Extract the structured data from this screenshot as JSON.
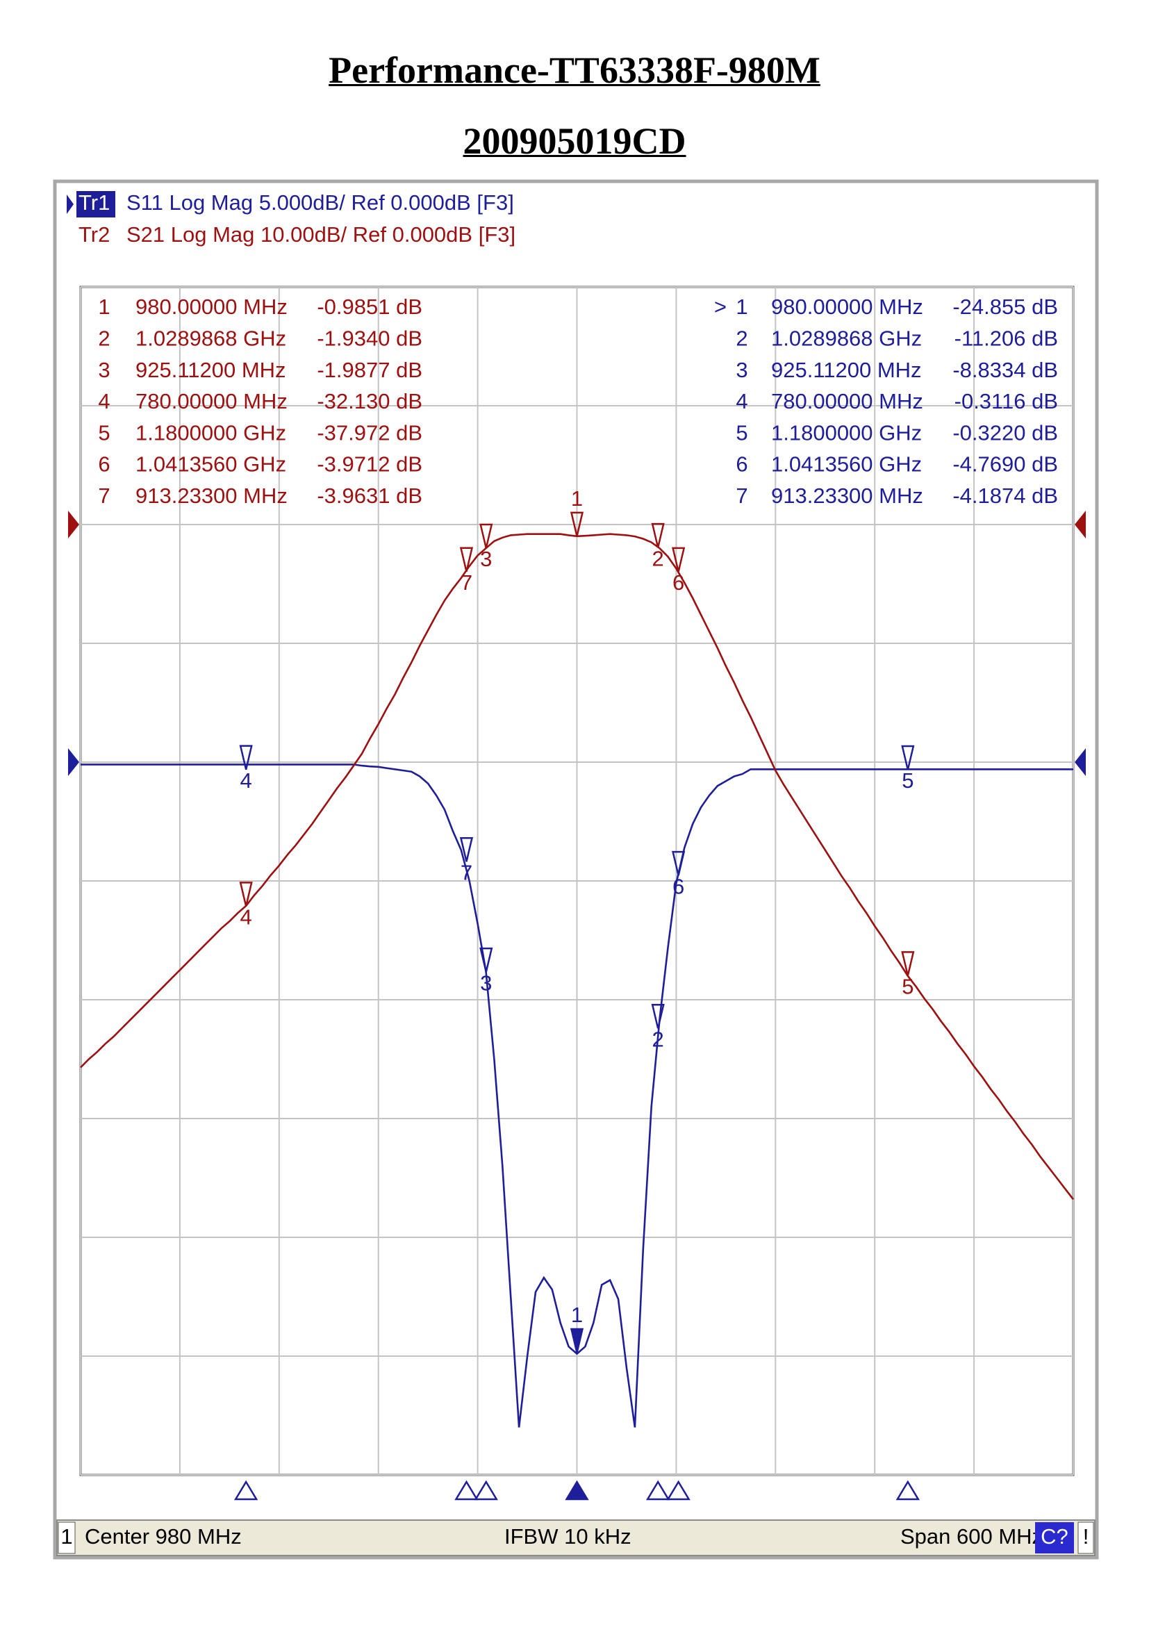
{
  "header": {
    "title": "Performance-TT63338F-980M",
    "subtitle": "200905019CD"
  },
  "status": {
    "channel": "1",
    "center": "Center 980 MHz",
    "ifbw": "IFBW 10 kHz",
    "span": "Span 600 MHz",
    "cal": "C?",
    "flag": "!"
  },
  "chart_data": {
    "type": "line",
    "grid": true,
    "xlim": [
      680,
      1280
    ],
    "xticks": [
      680,
      740,
      800,
      860,
      920,
      980,
      1040,
      1100,
      1160,
      1220,
      1280
    ],
    "ylim": [
      -80,
      20
    ],
    "yticks": [
      -80,
      -70,
      -60,
      -50,
      -40,
      -30,
      -20,
      -10,
      0,
      10,
      20
    ],
    "y2lim": [
      -30,
      20
    ],
    "y2ticks": [
      -30,
      -25,
      -20,
      -15,
      -10,
      -5,
      0,
      5,
      10,
      15,
      20
    ],
    "x": [
      680,
      685,
      690,
      695,
      700,
      705,
      710,
      715,
      720,
      725,
      730,
      735,
      740,
      745,
      750,
      755,
      760,
      765,
      770,
      775,
      780,
      785,
      790,
      795,
      800,
      805,
      810,
      815,
      820,
      825,
      830,
      835,
      840,
      845,
      850,
      855,
      860,
      865,
      870,
      875,
      880,
      885,
      890,
      895,
      900,
      905,
      910,
      915,
      920,
      925,
      930,
      935,
      940,
      945,
      950,
      955,
      960,
      965,
      970,
      975,
      980,
      985,
      990,
      995,
      1000,
      1005,
      1010,
      1015,
      1020,
      1025,
      1030,
      1035,
      1040,
      1045,
      1050,
      1055,
      1060,
      1065,
      1070,
      1075,
      1080,
      1085,
      1090,
      1095,
      1100,
      1105,
      1110,
      1115,
      1120,
      1125,
      1130,
      1135,
      1140,
      1145,
      1150,
      1155,
      1160,
      1165,
      1170,
      1175,
      1180,
      1185,
      1190,
      1195,
      1200,
      1205,
      1210,
      1215,
      1220,
      1225,
      1230,
      1235,
      1240,
      1245,
      1250,
      1255,
      1260,
      1265,
      1270,
      1275,
      1280
    ],
    "series": [
      {
        "name": "Tr1",
        "label": "S11 Log Mag 5.000dB/ Ref 0.000dB [F3]",
        "color": "#1e1e9a",
        "axis": "y2",
        "ref": 0,
        "active": true,
        "marker_table": "right",
        "values": [
          -0.1,
          -0.1,
          -0.1,
          -0.1,
          -0.1,
          -0.1,
          -0.1,
          -0.1,
          -0.1,
          -0.1,
          -0.1,
          -0.1,
          -0.1,
          -0.1,
          -0.1,
          -0.1,
          -0.1,
          -0.1,
          -0.1,
          -0.1,
          -0.1,
          -0.1,
          -0.1,
          -0.1,
          -0.1,
          -0.1,
          -0.1,
          -0.1,
          -0.1,
          -0.1,
          -0.1,
          -0.1,
          -0.1,
          -0.1,
          -0.15,
          -0.18,
          -0.2,
          -0.25,
          -0.3,
          -0.35,
          -0.4,
          -0.6,
          -0.9,
          -1.4,
          -2.0,
          -2.9,
          -3.7,
          -5.0,
          -6.8,
          -8.8,
          -12.5,
          -17.0,
          -22.5,
          -28.0,
          -25.0,
          -22.3,
          -21.7,
          -22.2,
          -23.6,
          -24.6,
          -24.9,
          -24.6,
          -23.6,
          -22.0,
          -21.8,
          -22.6,
          -25.5,
          -28.0,
          -20.5,
          -14.5,
          -10.8,
          -7.8,
          -5.1,
          -3.6,
          -2.6,
          -1.9,
          -1.4,
          -1.0,
          -0.8,
          -0.6,
          -0.5,
          -0.3,
          -0.3,
          -0.3,
          -0.3,
          -0.3,
          -0.3,
          -0.3,
          -0.3,
          -0.3,
          -0.3,
          -0.3,
          -0.3,
          -0.3,
          -0.3,
          -0.3,
          -0.3,
          -0.3,
          -0.3,
          -0.3,
          -0.3,
          -0.3,
          -0.3,
          -0.3,
          -0.3,
          -0.3,
          -0.3,
          -0.3,
          -0.3,
          -0.3,
          -0.3,
          -0.3,
          -0.3,
          -0.3,
          -0.3,
          -0.3,
          -0.3,
          -0.3,
          -0.3,
          -0.3,
          -0.3
        ],
        "markers": [
          {
            "id": "1",
            "flag": ">",
            "x": 980,
            "x_label": "980.00000 MHz",
            "y": -24.855,
            "y_label": "-24.855 dB"
          },
          {
            "id": "2",
            "x": 1028.9868,
            "x_label": "1.0289868 GHz",
            "y": -11.206,
            "y_label": "-11.206 dB"
          },
          {
            "id": "3",
            "x": 925.112,
            "x_label": "925.11200 MHz",
            "y": -8.8334,
            "y_label": "-8.8334 dB"
          },
          {
            "id": "4",
            "x": 780,
            "x_label": "780.00000 MHz",
            "y": -0.3116,
            "y_label": "-0.3116 dB"
          },
          {
            "id": "5",
            "x": 1180,
            "x_label": "1.1800000 GHz",
            "y": -0.322,
            "y_label": "-0.3220 dB"
          },
          {
            "id": "6",
            "x": 1041.356,
            "x_label": "1.0413560 GHz",
            "y": -4.769,
            "y_label": "-4.7690 dB"
          },
          {
            "id": "7",
            "x": 913.233,
            "x_label": "913.23300 MHz",
            "y": -4.1874,
            "y_label": "-4.1874 dB"
          }
        ]
      },
      {
        "name": "Tr2",
        "label": "S21 Log Mag 10.00dB/ Ref 0.000dB [F3]",
        "color": "#9e1010",
        "axis": "y",
        "ref": 0,
        "active": false,
        "marker_table": "left",
        "values": [
          -45.7,
          -45.0,
          -44.4,
          -43.7,
          -43.1,
          -42.4,
          -41.7,
          -41.0,
          -40.3,
          -39.6,
          -38.9,
          -38.2,
          -37.5,
          -36.8,
          -36.1,
          -35.4,
          -34.7,
          -34.0,
          -33.4,
          -32.7,
          -32.1,
          -31.2,
          -30.4,
          -29.5,
          -28.7,
          -27.8,
          -27.0,
          -26.1,
          -25.2,
          -24.2,
          -23.2,
          -22.2,
          -21.3,
          -20.3,
          -19.3,
          -18.0,
          -16.8,
          -15.5,
          -14.3,
          -12.9,
          -11.6,
          -10.2,
          -8.9,
          -7.6,
          -6.4,
          -5.4,
          -4.5,
          -3.5,
          -2.6,
          -2.0,
          -1.4,
          -1.1,
          -0.9,
          -0.85,
          -0.8,
          -0.8,
          -0.8,
          -0.8,
          -0.8,
          -0.9,
          -0.98,
          -0.95,
          -0.9,
          -0.85,
          -0.8,
          -0.85,
          -0.9,
          -1.0,
          -1.2,
          -1.5,
          -2.0,
          -2.7,
          -3.7,
          -4.9,
          -6.2,
          -7.6,
          -9.0,
          -10.4,
          -11.9,
          -13.3,
          -14.8,
          -16.2,
          -17.7,
          -19.2,
          -20.7,
          -21.9,
          -23.0,
          -24.1,
          -25.2,
          -26.3,
          -27.4,
          -28.5,
          -29.6,
          -30.6,
          -31.7,
          -32.7,
          -33.8,
          -34.8,
          -35.9,
          -36.9,
          -38.0,
          -38.9,
          -39.9,
          -40.8,
          -41.8,
          -42.7,
          -43.7,
          -44.6,
          -45.6,
          -46.5,
          -47.5,
          -48.4,
          -49.4,
          -50.3,
          -51.3,
          -52.2,
          -53.2,
          -54.1,
          -55.0,
          -55.9,
          -56.8
        ],
        "markers": [
          {
            "id": "1",
            "x": 980,
            "x_label": "980.00000 MHz",
            "y": -0.9851,
            "y_label": "-0.9851 dB"
          },
          {
            "id": "2",
            "x": 1028.9868,
            "x_label": "1.0289868 GHz",
            "y": -1.934,
            "y_label": "-1.9340 dB"
          },
          {
            "id": "3",
            "x": 925.112,
            "x_label": "925.11200 MHz",
            "y": -1.9877,
            "y_label": "-1.9877 dB"
          },
          {
            "id": "4",
            "x": 780,
            "x_label": "780.00000 MHz",
            "y": -32.13,
            "y_label": "-32.130 dB"
          },
          {
            "id": "5",
            "x": 1180,
            "x_label": "1.1800000 GHz",
            "y": -37.972,
            "y_label": "-37.972 dB"
          },
          {
            "id": "6",
            "x": 1041.356,
            "x_label": "1.0413560 GHz",
            "y": -3.9712,
            "y_label": "-3.9712 dB"
          },
          {
            "id": "7",
            "x": 913.233,
            "x_label": "913.23300 MHz",
            "y": -3.9631,
            "y_label": "-3.9631 dB"
          }
        ]
      }
    ]
  }
}
